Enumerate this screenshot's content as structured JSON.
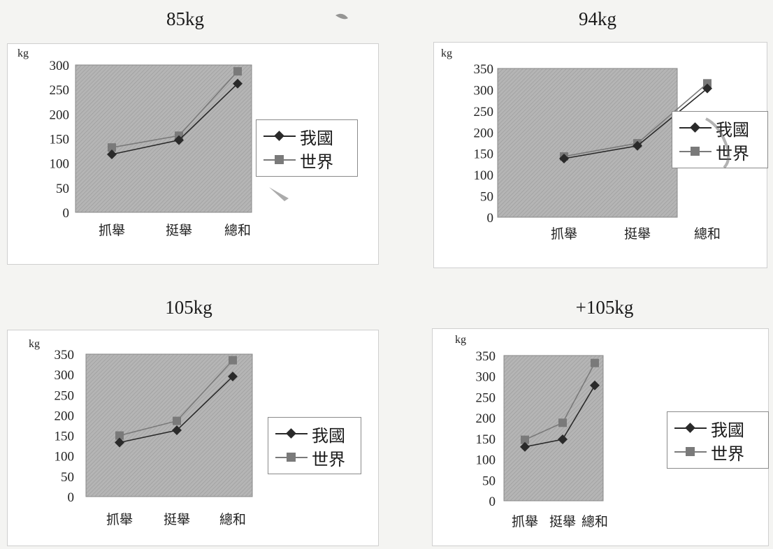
{
  "colors": {
    "page_background": "#f4f4f2",
    "plot_background": "#b5b5b5",
    "series_1": "#2a2a2a",
    "series_2": "#7a7a7a"
  },
  "chart_data": [
    {
      "type": "line",
      "title": "85kg",
      "ylabel": "kg",
      "categories": [
        "抓舉",
        "挺舉",
        "總和"
      ],
      "ylim": [
        0,
        300
      ],
      "yticks": [
        0,
        50,
        100,
        150,
        200,
        250,
        300
      ],
      "grid": false,
      "legend_position": "right",
      "series": [
        {
          "name": "我國",
          "marker": "diamond",
          "values": [
            118,
            147,
            262
          ]
        },
        {
          "name": "世界",
          "marker": "square",
          "values": [
            132,
            156,
            287
          ]
        }
      ]
    },
    {
      "type": "line",
      "title": "94kg",
      "ylabel": "kg",
      "categories": [
        "抓舉",
        "挺舉",
        "總和"
      ],
      "ylim": [
        0,
        350
      ],
      "yticks": [
        0,
        50,
        100,
        150,
        200,
        250,
        300,
        350
      ],
      "grid": false,
      "legend_position": "right",
      "series": [
        {
          "name": "我國",
          "marker": "diamond",
          "values": [
            138,
            168,
            303
          ]
        },
        {
          "name": "世界",
          "marker": "square",
          "values": [
            143,
            174,
            315
          ]
        }
      ]
    },
    {
      "type": "line",
      "title": "105kg",
      "ylabel": "kg",
      "categories": [
        "抓舉",
        "挺舉",
        "總和"
      ],
      "ylim": [
        0,
        350
      ],
      "yticks": [
        0,
        50,
        100,
        150,
        200,
        250,
        300,
        350
      ],
      "grid": false,
      "legend_position": "right",
      "series": [
        {
          "name": "我國",
          "marker": "diamond",
          "values": [
            133,
            163,
            295
          ]
        },
        {
          "name": "世界",
          "marker": "square",
          "values": [
            150,
            186,
            335
          ]
        }
      ]
    },
    {
      "type": "line",
      "title": "+105kg",
      "ylabel": "kg",
      "categories": [
        "抓舉",
        "挺舉",
        "總和"
      ],
      "ylim": [
        0,
        350
      ],
      "yticks": [
        0,
        50,
        100,
        150,
        200,
        250,
        300,
        350
      ],
      "grid": false,
      "legend_position": "right",
      "series": [
        {
          "name": "我國",
          "marker": "diamond",
          "values": [
            130,
            148,
            278
          ]
        },
        {
          "name": "世界",
          "marker": "square",
          "values": [
            147,
            188,
            332
          ]
        }
      ]
    }
  ]
}
